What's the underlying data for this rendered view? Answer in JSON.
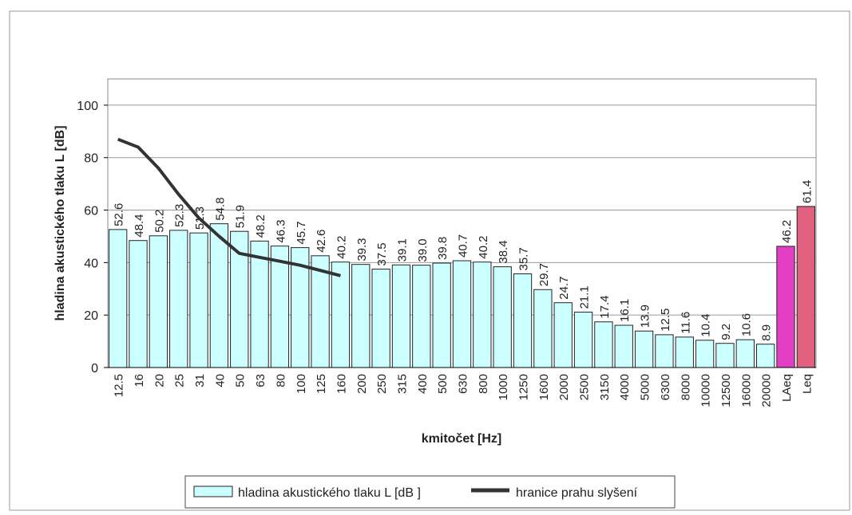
{
  "chart_data": {
    "type": "bar",
    "y_label": "hladina akustického tlaku  L [dB]",
    "x_label": "kmitočet [Hz]",
    "categories": [
      "12.5",
      "16",
      "20",
      "25",
      "31",
      "40",
      "50",
      "63",
      "80",
      "100",
      "125",
      "160",
      "200",
      "250",
      "315",
      "400",
      "500",
      "630",
      "800",
      "1000",
      "1250",
      "1600",
      "2000",
      "2500",
      "3150",
      "4000",
      "5000",
      "6300",
      "8000",
      "10000",
      "12500",
      "16000",
      "20000",
      "LAeq",
      "Leq"
    ],
    "series": [
      {
        "name": "hladina akustického tlaku L [dB ]",
        "type": "bar",
        "color": "#ccffff",
        "colors": [
          "#ccffff",
          "#ccffff",
          "#ccffff",
          "#ccffff",
          "#ccffff",
          "#ccffff",
          "#ccffff",
          "#ccffff",
          "#ccffff",
          "#ccffff",
          "#ccffff",
          "#ccffff",
          "#ccffff",
          "#ccffff",
          "#ccffff",
          "#ccffff",
          "#ccffff",
          "#ccffff",
          "#ccffff",
          "#ccffff",
          "#ccffff",
          "#ccffff",
          "#ccffff",
          "#ccffff",
          "#ccffff",
          "#ccffff",
          "#ccffff",
          "#ccffff",
          "#ccffff",
          "#ccffff",
          "#ccffff",
          "#ccffff",
          "#ccffff",
          "#e23fc4",
          "#e0607e"
        ],
        "values": [
          52.6,
          48.4,
          50.2,
          52.3,
          51.3,
          54.8,
          51.9,
          48.2,
          46.3,
          45.7,
          42.6,
          40.2,
          39.3,
          37.5,
          39.1,
          39.0,
          39.8,
          40.7,
          40.2,
          38.4,
          35.7,
          29.7,
          24.7,
          21.1,
          17.4,
          16.1,
          13.9,
          12.5,
          11.6,
          10.4,
          9.2,
          10.6,
          8.9,
          46.2,
          61.4
        ],
        "value_labels": [
          "52.6",
          "48.4",
          "50.2",
          "52.3",
          "51.3",
          "54.8",
          "51.9",
          "48.2",
          "46.3",
          "45.7",
          "42.6",
          "40.2",
          "39.3",
          "37.5",
          "39.1",
          "39.0",
          "39.8",
          "40.7",
          "40.2",
          "38.4",
          "35.7",
          "29.7",
          "24.7",
          "21.1",
          "17.4",
          "16.1",
          "13.9",
          "12.5",
          "11.6",
          "10.4",
          "9.2",
          "10.6",
          "8.9",
          "46.2",
          "61.4"
        ]
      },
      {
        "name": "hranice prahu slyšení",
        "type": "line",
        "color": "#333333",
        "values": [
          87,
          84,
          76,
          66,
          57,
          50,
          43.5,
          42,
          40.5,
          39,
          37,
          35,
          null,
          null,
          null,
          null,
          null,
          null,
          null,
          null,
          null,
          null,
          null,
          null,
          null,
          null,
          null,
          null,
          null,
          null,
          null,
          null,
          null,
          null,
          null
        ]
      }
    ],
    "ylim": [
      0,
      110
    ],
    "yticks": [
      0,
      20,
      40,
      60,
      80,
      100
    ],
    "grid": true
  }
}
